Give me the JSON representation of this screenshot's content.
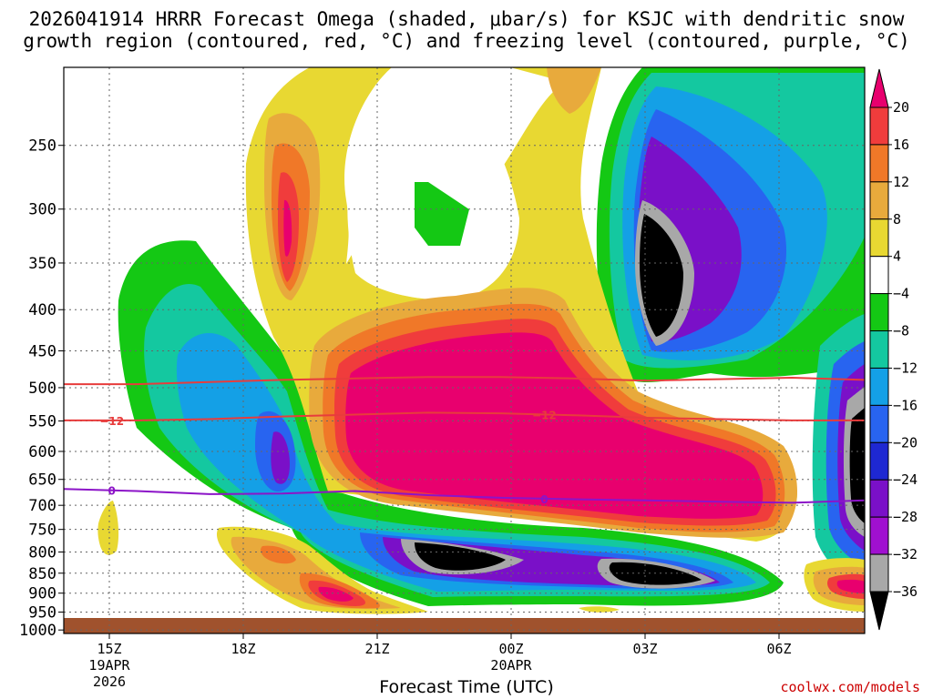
{
  "header": {
    "title_line1": "2026041914 HRRR Forecast Omega (shaded, μbar/s) for KSJC with dendritic snow",
    "title_line2": "growth region (contoured, red, °C) and freezing level (contoured, purple, °C)"
  },
  "footer": {
    "x_axis_title": "Forecast Time (UTC)",
    "credit": "coolwx.com/models"
  },
  "chart_data": {
    "type": "heatmap",
    "x_axis": {
      "label": "Forecast Time (UTC)",
      "ticks": [
        {
          "label": "15Z",
          "sub": [
            "19APR",
            "2026"
          ]
        },
        {
          "label": "18Z",
          "sub": []
        },
        {
          "label": "21Z",
          "sub": []
        },
        {
          "label": "00Z",
          "sub": [
            "20APR"
          ]
        },
        {
          "label": "03Z",
          "sub": []
        },
        {
          "label": "06Z",
          "sub": []
        }
      ]
    },
    "y_axis": {
      "units": "mb",
      "scale": "log-pressure",
      "ticks": [
        250,
        300,
        350,
        400,
        450,
        500,
        550,
        600,
        650,
        700,
        750,
        800,
        850,
        900,
        950,
        1000
      ],
      "ylim": [
        1010,
        200
      ]
    },
    "colorbar": {
      "levels": [
        "20",
        "16",
        "12",
        "8",
        "4",
        "−4",
        "−8",
        "−12",
        "−16",
        "−20",
        "−24",
        "−28",
        "−32",
        "−36"
      ],
      "colors": [
        "#e8006e",
        "#f03c3c",
        "#f07828",
        "#e8aa3c",
        "#e8d832",
        "#ffffff",
        "#14c814",
        "#14c8a0",
        "#14a0e6",
        "#2864f0",
        "#1e28d2",
        "#7a10c8",
        "#a010d0",
        "#a8a8a8",
        "#000000"
      ]
    },
    "contours": [
      {
        "name": "dendritic growth bound",
        "value": "",
        "color": "#e83c3c",
        "pressure_mb": [
          495,
          495,
          492,
          489,
          487,
          485,
          485,
          487,
          490,
          488,
          486,
          489
        ]
      },
      {
        "name": "dendritic growth bound",
        "value": "−12",
        "color": "#e83c3c",
        "pressure_mb": [
          549,
          549,
          547,
          543,
          540,
          537,
          538,
          541,
          545,
          547,
          549,
          549
        ]
      },
      {
        "name": "freezing level",
        "value": "0",
        "color": "#8c14c8",
        "pressure_mb": [
          668,
          672,
          678,
          677,
          672,
          680,
          685,
          688,
          690,
          693,
          695,
          690
        ]
      }
    ]
  }
}
